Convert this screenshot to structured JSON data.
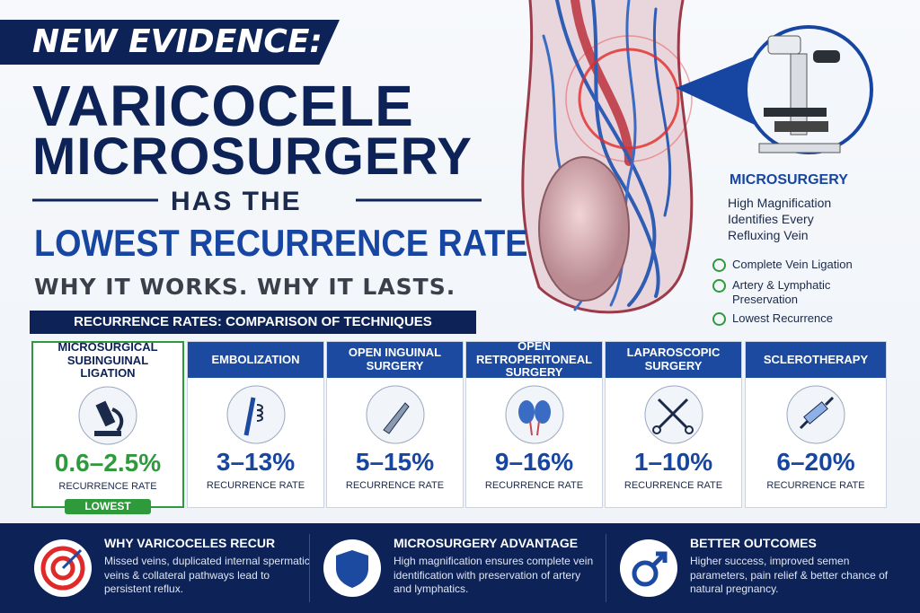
{
  "header": {
    "badge": "NEW EVIDENCE:",
    "title_lines": [
      "VARICOCELE",
      "MICROSURGERY"
    ],
    "connector": "HAS THE",
    "highlight": "LOWEST RECURRENCE RATE",
    "tagline": "WHY IT WORKS. WHY IT LASTS."
  },
  "callout": {
    "title": "MICROSURGERY",
    "description": [
      "High Magnification",
      "Identifies Every",
      "Refluxing Vein"
    ],
    "checklist": [
      "Complete Vein Ligation",
      "Artery & Lymphatic Preservation",
      "Lowest Recurrence"
    ]
  },
  "comparison": {
    "title": "RECURRENCE RATES: COMPARISON OF TECHNIQUES",
    "cards": [
      {
        "name": "MICROSURGICAL SUBINGUINAL LIGATION",
        "rate": "0.6–2.5%",
        "caption": "RECURRENCE RATE",
        "badge": "LOWEST"
      },
      {
        "name": "EMBOLIZATION",
        "rate": "3–13%",
        "caption": "RECURRENCE RATE"
      },
      {
        "name": "OPEN INGUINAL SURGERY",
        "rate": "5–15%",
        "caption": "RECURRENCE RATE"
      },
      {
        "name": "OPEN RETROPERITONEAL SURGERY",
        "rate": "9–16%",
        "caption": "RECURRENCE RATE"
      },
      {
        "name": "LAPAROSCOPIC SURGERY",
        "rate": "1–10%",
        "caption": "RECURRENCE RATE"
      },
      {
        "name": "SCLEROTHERAPY",
        "rate": "6–20%",
        "caption": "RECURRENCE RATE"
      }
    ]
  },
  "footer": {
    "items": [
      {
        "title": "WHY VARICOCELES RECUR",
        "text": "Missed veins, duplicated internal spermatic veins & collateral pathways lead to persistent reflux."
      },
      {
        "title": "MICROSURGERY ADVANTAGE",
        "text": "High magnification ensures complete vein identification with preservation of artery and lymphatics."
      },
      {
        "title": "BETTER OUTCOMES",
        "text": "Higher success, improved semen parameters, pain relief & better chance of natural pregnancy."
      }
    ]
  }
}
